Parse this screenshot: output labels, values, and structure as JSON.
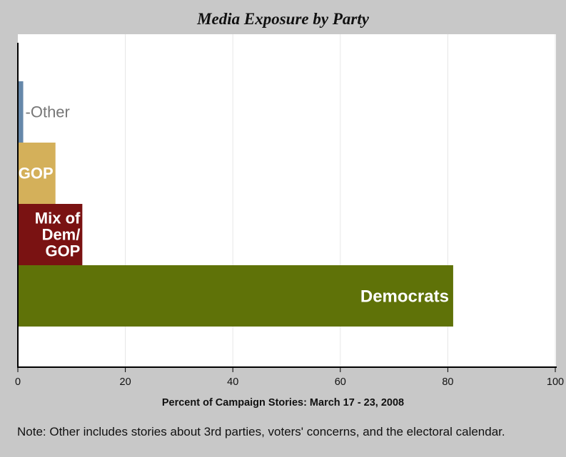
{
  "chart_data": {
    "type": "bar",
    "orientation": "horizontal",
    "title": "Media Exposure by Party",
    "xlabel": "Percent of Campaign Stories: March 17 - 23, 2008",
    "ylabel": "",
    "xlim": [
      0,
      100
    ],
    "xticks": [
      "0",
      "20",
      "40",
      "60",
      "80",
      "100"
    ],
    "grid": true,
    "categories": [
      "Other",
      "GOP",
      "Mix of Dem/ GOP",
      "Democrats"
    ],
    "category_lines": [
      [
        "-Other"
      ],
      [
        "GOP"
      ],
      [
        "Mix of",
        "Dem/",
        "GOP"
      ],
      [
        "Democrats"
      ]
    ],
    "values": [
      1,
      7,
      12,
      81
    ],
    "colors": [
      "#6688aa",
      "#d4b05a",
      "#7a1212",
      "#5f7208"
    ],
    "label_colors": [
      "#777777",
      "#ffffff",
      "#ffffff",
      "#ffffff"
    ]
  },
  "note": "Note: Other includes stories about 3rd parties, voters' concerns, and the electoral calendar."
}
